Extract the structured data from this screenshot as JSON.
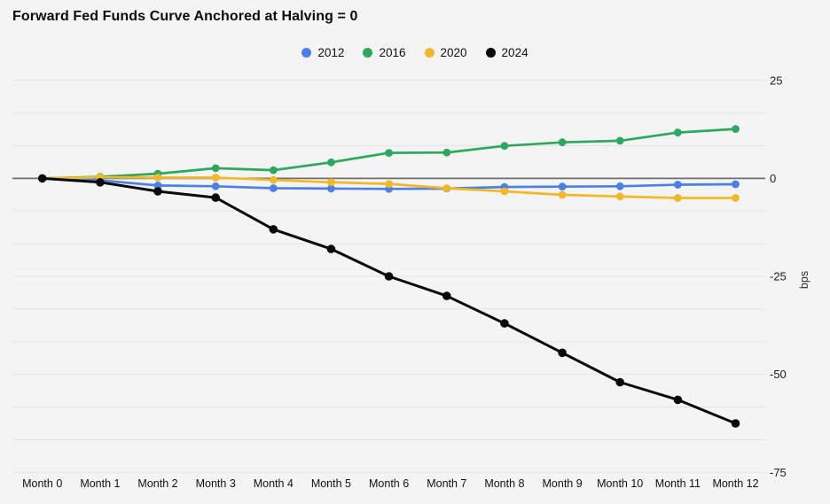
{
  "title": "Forward Fed Funds Curve Anchored at Halving = 0",
  "background_color": "#f4f4f4",
  "grid_color": "#e3e3e3",
  "zero_line_color": "#6e6e6e",
  "axis_text_color": "#1c1c1c",
  "chart_data": {
    "type": "line",
    "title": "Forward Fed Funds Curve Anchored at Halving = 0",
    "ylabel": "bps",
    "xlabel": "",
    "grid": true,
    "legend_position": "top",
    "ylim": [
      -75,
      25
    ],
    "y_ticks": [
      {
        "label": "25",
        "value": 25
      },
      {
        "label": "0",
        "value": 0
      },
      {
        "label": "-25",
        "value": -25
      },
      {
        "label": "-50",
        "value": -50
      },
      {
        "label": "-75",
        "value": -75
      }
    ],
    "x_categories": [
      "Month 0",
      "Month 1",
      "Month 2",
      "Month 3",
      "Month 4",
      "Month 5",
      "Month 6",
      "Month 7",
      "Month 8",
      "Month 9",
      "Month 10",
      "Month 11",
      "Month 12"
    ],
    "series": [
      {
        "name": "2012",
        "color": "#4a80e8",
        "values": [
          0,
          -0.5,
          -1.8,
          -2.0,
          -2.5,
          -2.6,
          -2.7,
          -2.6,
          -2.2,
          -2.1,
          -2.0,
          -1.6,
          -1.5
        ]
      },
      {
        "name": "2016",
        "color": "#2da85f",
        "values": [
          0,
          0.4,
          1.2,
          2.6,
          2.1,
          4.1,
          6.5,
          6.6,
          8.3,
          9.2,
          9.6,
          11.7,
          12.6
        ]
      },
      {
        "name": "2020",
        "color": "#f2b828",
        "values": [
          0,
          0.3,
          0.2,
          0.2,
          -0.4,
          -1.0,
          -1.4,
          -2.5,
          -3.3,
          -4.2,
          -4.6,
          -5.0,
          -5.0
        ]
      },
      {
        "name": "2024",
        "color": "#0a0a0a",
        "values": [
          0,
          -1.0,
          -3.3,
          -4.9,
          -13,
          -18,
          -25,
          -30,
          -37,
          -44.5,
          -52,
          -56.5,
          -62.5
        ]
      }
    ]
  }
}
